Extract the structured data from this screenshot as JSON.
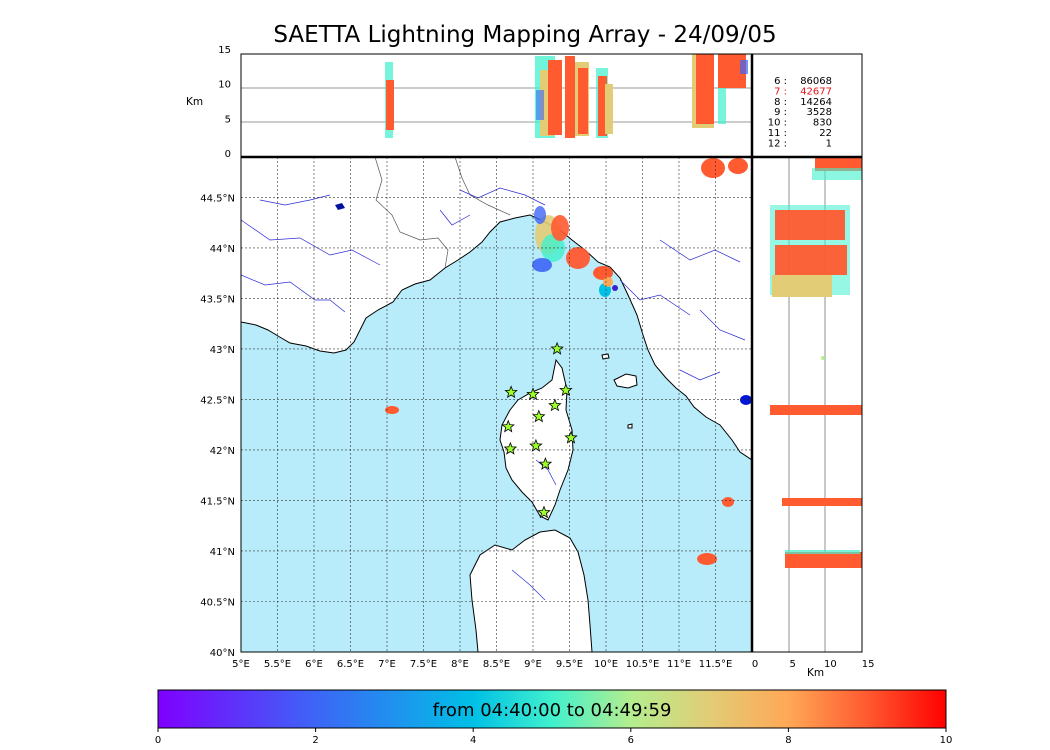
{
  "title": "SAETTA Lightning Mapping Array - 24/09/05",
  "height_panel": {
    "ylabel": "Km",
    "yticks": [
      "0",
      "5",
      "10",
      "15"
    ]
  },
  "side_panel": {
    "xlabel": "Km",
    "xticks": [
      "0",
      "5",
      "10",
      "15"
    ]
  },
  "map": {
    "lon_ticks": [
      "5°E",
      "5.5°E",
      "6°E",
      "6.5°E",
      "7°E",
      "7.5°E",
      "8°E",
      "8.5°E",
      "9°E",
      "9.5°E",
      "10°E",
      "10.5°E",
      "11°E",
      "11.5°E"
    ],
    "lat_ticks": [
      "40°N",
      "40.5°N",
      "41°N",
      "41.5°N",
      "42°N",
      "42.5°N",
      "43°N",
      "43.5°N",
      "44°N",
      "44.5°N"
    ],
    "land_color": "#ffffff",
    "sea_color": "#b8ecfb",
    "river_color": "#2b2bd6",
    "stations": [
      {
        "lon": 9.33,
        "lat": 43.0
      },
      {
        "lon": 8.7,
        "lat": 42.57
      },
      {
        "lon": 9.0,
        "lat": 42.55
      },
      {
        "lon": 9.45,
        "lat": 42.59
      },
      {
        "lon": 9.3,
        "lat": 42.44
      },
      {
        "lon": 9.08,
        "lat": 42.33
      },
      {
        "lon": 8.66,
        "lat": 42.23
      },
      {
        "lon": 9.52,
        "lat": 42.12
      },
      {
        "lon": 8.69,
        "lat": 42.01
      },
      {
        "lon": 9.04,
        "lat": 42.04
      },
      {
        "lon": 9.17,
        "lat": 41.86
      },
      {
        "lon": 9.15,
        "lat": 41.38
      }
    ]
  },
  "counts": [
    {
      "label": "6 :",
      "value": "86068",
      "color": "#000000"
    },
    {
      "label": "7 :",
      "value": "42677",
      "color": "#e8141b"
    },
    {
      "label": "8 :",
      "value": "14264",
      "color": "#000000"
    },
    {
      "label": "9 :",
      "value": "3528",
      "color": "#000000"
    },
    {
      "label": "10 :",
      "value": "830",
      "color": "#000000"
    },
    {
      "label": "11 :",
      "value": "22",
      "color": "#000000"
    },
    {
      "label": "12 :",
      "value": "1",
      "color": "#000000"
    }
  ],
  "colorbar": {
    "label": "from 04:40:00 to 04:49:59",
    "ticks": [
      "0",
      "2",
      "4",
      "6",
      "8",
      "10"
    ]
  }
}
